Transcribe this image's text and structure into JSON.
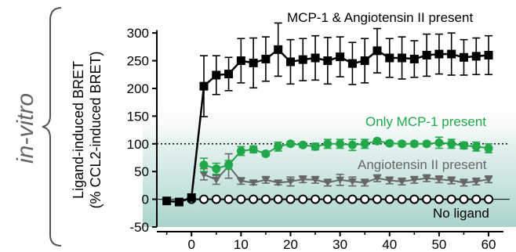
{
  "side_label": "in-vitro",
  "chart_data": {
    "type": "line",
    "ylabel_line1": "Ligand-induced BRET",
    "ylabel_line2": "(% CCL2-induced BRET)",
    "xlabel": "",
    "xlim": [
      -7,
      63
    ],
    "ylim": [
      -50,
      320
    ],
    "xticks": [
      0,
      10,
      20,
      30,
      40,
      50,
      60
    ],
    "yticks": [
      -50,
      0,
      50,
      100,
      150,
      200,
      250,
      300
    ],
    "reference_line_y": 100,
    "series": [
      {
        "name": "MCP-1 & Angiotensin II present",
        "color": "#000000",
        "marker": "square",
        "x": [
          -5,
          -2.5,
          0,
          2.5,
          5,
          7.5,
          10,
          12.5,
          15,
          17.5,
          20,
          22.5,
          25,
          27.5,
          30,
          32.5,
          35,
          37.5,
          40,
          42.5,
          45,
          47.5,
          50,
          52.5,
          55,
          57.5,
          60
        ],
        "y": [
          -3,
          -5,
          3,
          204,
          224,
          226,
          250,
          246,
          253,
          270,
          248,
          252,
          255,
          250,
          257,
          245,
          250,
          268,
          255,
          255,
          253,
          260,
          262,
          262,
          256,
          258,
          260
        ],
        "err": [
          5,
          6,
          6,
          55,
          35,
          30,
          40,
          45,
          40,
          48,
          40,
          38,
          40,
          42,
          36,
          38,
          40,
          40,
          35,
          38,
          33,
          38,
          36,
          38,
          32,
          33,
          35
        ]
      },
      {
        "name": "Only MCP-1 present",
        "color": "#22a84a",
        "marker": "circle",
        "x": [
          2.5,
          5,
          7.5,
          10,
          12.5,
          15,
          17.5,
          20,
          22.5,
          25,
          27.5,
          30,
          32.5,
          35,
          37.5,
          40,
          42.5,
          45,
          47.5,
          50,
          52.5,
          55,
          57.5,
          60
        ],
        "y": [
          62,
          55,
          62,
          87,
          90,
          82,
          95,
          100,
          98,
          95,
          100,
          100,
          98,
          100,
          105,
          101,
          100,
          100,
          100,
          102,
          100,
          97,
          95,
          92
        ],
        "err": [
          12,
          10,
          8,
          8,
          6,
          4,
          8,
          4,
          4,
          6,
          8,
          8,
          10,
          8,
          4,
          4,
          4,
          4,
          4,
          10,
          8,
          6,
          8,
          8
        ]
      },
      {
        "name": "Angiotensin II present",
        "color": "#666666",
        "marker": "triangle-down",
        "x": [
          2.5,
          5,
          7.5,
          10,
          12.5,
          15,
          17.5,
          20,
          22.5,
          25,
          27.5,
          30,
          32.5,
          35,
          37.5,
          40,
          42.5,
          45,
          47.5,
          50,
          52.5,
          55,
          57.5,
          60
        ],
        "y": [
          45,
          35,
          60,
          33,
          30,
          35,
          30,
          32,
          36,
          35,
          30,
          35,
          32,
          30,
          38,
          34,
          32,
          35,
          38,
          36,
          34,
          30,
          32,
          36
        ],
        "err": [
          10,
          8,
          22,
          6,
          4,
          6,
          4,
          8,
          6,
          6,
          6,
          10,
          8,
          6,
          6,
          6,
          6,
          6,
          6,
          6,
          6,
          6,
          6,
          6
        ]
      },
      {
        "name": "No ligand",
        "color": "#000000",
        "marker": "open-circle",
        "x": [
          0,
          2.5,
          5,
          7.5,
          10,
          12.5,
          15,
          17.5,
          20,
          22.5,
          25,
          27.5,
          30,
          32.5,
          35,
          37.5,
          40,
          42.5,
          45,
          47.5,
          50,
          52.5,
          55,
          57.5,
          60
        ],
        "y": [
          0,
          0,
          0,
          0,
          0,
          0,
          0,
          0,
          0,
          0,
          0,
          0,
          0,
          0,
          0,
          0,
          0,
          0,
          0,
          0,
          0,
          0,
          0,
          0,
          0
        ],
        "err": []
      }
    ],
    "legend_colors": {
      "mcp_ang": "#000000",
      "mcp_only": "#22a84a",
      "ang_only": "#666666",
      "no_ligand": "#000000"
    },
    "shading_color": "#cfe4e1"
  }
}
